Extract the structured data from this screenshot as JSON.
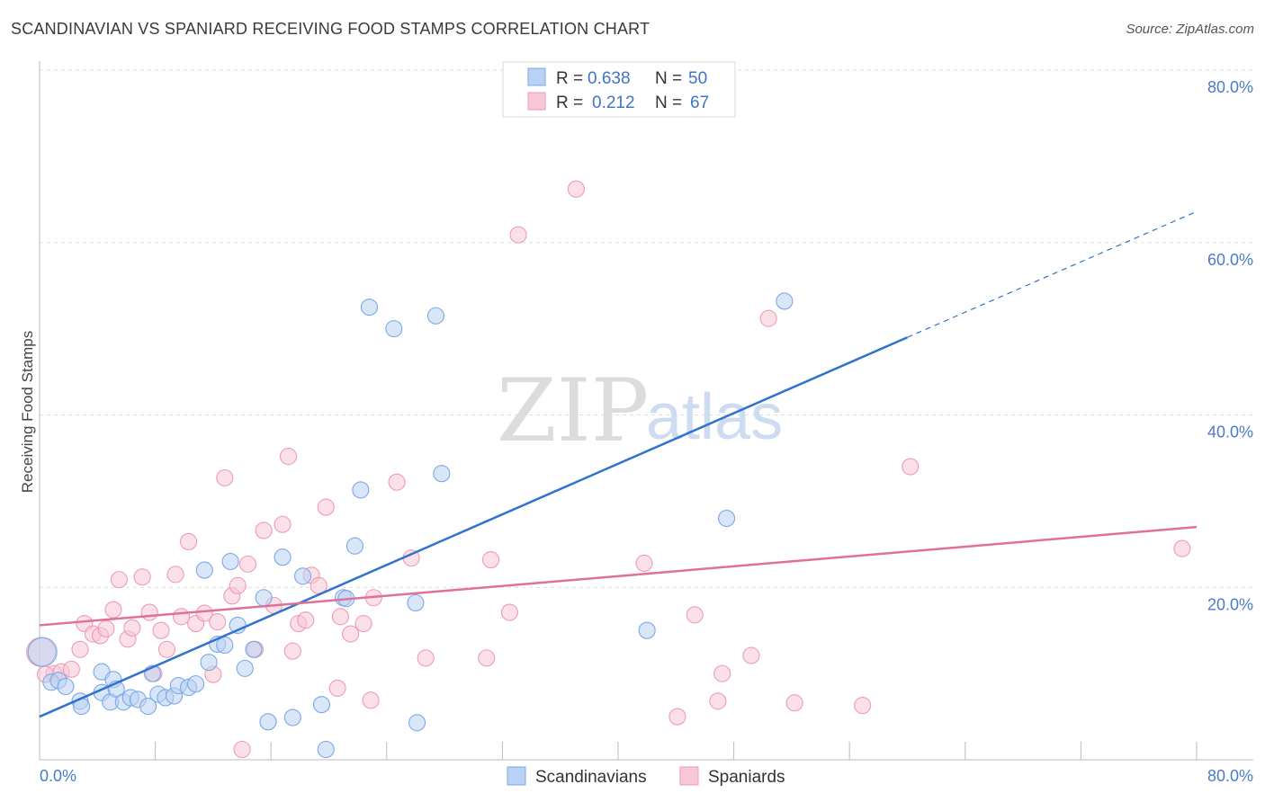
{
  "title": "SCANDINAVIAN VS SPANIARD RECEIVING FOOD STAMPS CORRELATION CHART",
  "source": "Source: ZipAtlas.com",
  "watermark": {
    "zip": "ZIP",
    "atlas": "atlas"
  },
  "colors": {
    "scandinavians": "#7aa8e6",
    "scandinavians_fill": "#b9d2f3",
    "scandinavians_line": "#2f72d0",
    "spaniards": "#ef9ab4",
    "spaniards_fill": "#f8c7d6",
    "spaniards_line": "#e0709a",
    "grid": "#dddddd",
    "tick_text": "#4a7cc9"
  },
  "legend": {
    "rows": [
      {
        "r_label": "R =",
        "r_value": "0.638",
        "n_label": "N =",
        "n_value": "50"
      },
      {
        "r_label": "R =",
        "r_value": "0.212",
        "n_label": "N =",
        "n_value": "67"
      }
    ]
  },
  "chart_data": {
    "type": "scatter",
    "title": "SCANDINAVIAN VS SPANIARD RECEIVING FOOD STAMPS CORRELATION CHART",
    "xlabel": "",
    "ylabel": "Receiving Food Stamps",
    "xlim": [
      0,
      80
    ],
    "ylim": [
      0,
      80
    ],
    "x_tick_labels": [
      "0.0%",
      "80.0%"
    ],
    "y_tick_labels": [
      "20.0%",
      "40.0%",
      "60.0%",
      "80.0%"
    ],
    "y_ticks": [
      20,
      40,
      60,
      80
    ],
    "grid": true,
    "legend_position": "bottom",
    "series": [
      {
        "name": "Scandinavians",
        "points": [
          [
            0.2,
            12.5
          ],
          [
            0.8,
            9.0
          ],
          [
            1.3,
            9.2
          ],
          [
            1.8,
            8.5
          ],
          [
            2.8,
            6.8
          ],
          [
            2.9,
            6.2
          ],
          [
            4.3,
            7.8
          ],
          [
            4.9,
            6.7
          ],
          [
            4.3,
            10.2
          ],
          [
            5.1,
            9.3
          ],
          [
            5.3,
            8.2
          ],
          [
            5.8,
            6.7
          ],
          [
            6.3,
            7.2
          ],
          [
            6.8,
            7.0
          ],
          [
            7.5,
            6.2
          ],
          [
            7.8,
            10.0
          ],
          [
            8.2,
            7.6
          ],
          [
            8.7,
            7.2
          ],
          [
            9.3,
            7.4
          ],
          [
            9.6,
            8.6
          ],
          [
            10.3,
            8.4
          ],
          [
            10.8,
            8.8
          ],
          [
            11.4,
            22.0
          ],
          [
            11.7,
            11.3
          ],
          [
            12.3,
            13.4
          ],
          [
            12.8,
            13.3
          ],
          [
            13.2,
            23.0
          ],
          [
            13.7,
            15.6
          ],
          [
            14.2,
            10.6
          ],
          [
            14.8,
            12.8
          ],
          [
            15.5,
            18.8
          ],
          [
            15.8,
            4.4
          ],
          [
            16.8,
            23.5
          ],
          [
            17.5,
            4.9
          ],
          [
            18.2,
            21.3
          ],
          [
            19.5,
            6.4
          ],
          [
            19.8,
            1.2
          ],
          [
            21.0,
            18.8
          ],
          [
            21.2,
            18.7
          ],
          [
            21.8,
            24.8
          ],
          [
            22.2,
            31.3
          ],
          [
            22.8,
            52.5
          ],
          [
            24.5,
            50.0
          ],
          [
            26.0,
            18.2
          ],
          [
            26.1,
            4.3
          ],
          [
            27.4,
            51.5
          ],
          [
            27.8,
            33.2
          ],
          [
            42.0,
            15.0
          ],
          [
            47.5,
            28.0
          ],
          [
            51.5,
            53.2
          ]
        ]
      },
      {
        "name": "Spaniards",
        "points": [
          [
            0.1,
            12.5
          ],
          [
            1.0,
            10.0
          ],
          [
            1.5,
            10.2
          ],
          [
            2.2,
            10.5
          ],
          [
            2.8,
            12.8
          ],
          [
            3.1,
            15.8
          ],
          [
            3.7,
            14.6
          ],
          [
            4.2,
            14.4
          ],
          [
            4.6,
            15.2
          ],
          [
            5.1,
            17.4
          ],
          [
            5.5,
            20.9
          ],
          [
            6.1,
            14.0
          ],
          [
            6.4,
            15.3
          ],
          [
            7.1,
            21.2
          ],
          [
            7.6,
            17.1
          ],
          [
            7.9,
            10.0
          ],
          [
            8.4,
            15.0
          ],
          [
            8.8,
            12.8
          ],
          [
            9.4,
            21.5
          ],
          [
            9.8,
            16.6
          ],
          [
            10.3,
            25.3
          ],
          [
            10.8,
            15.8
          ],
          [
            11.4,
            17.0
          ],
          [
            12.0,
            9.9
          ],
          [
            12.3,
            16.0
          ],
          [
            12.8,
            32.7
          ],
          [
            13.3,
            19.0
          ],
          [
            13.7,
            20.2
          ],
          [
            14.0,
            1.2
          ],
          [
            14.4,
            22.7
          ],
          [
            14.9,
            12.8
          ],
          [
            15.5,
            26.6
          ],
          [
            16.2,
            17.9
          ],
          [
            16.8,
            27.3
          ],
          [
            17.2,
            35.2
          ],
          [
            17.5,
            12.6
          ],
          [
            17.9,
            15.8
          ],
          [
            18.4,
            16.2
          ],
          [
            18.8,
            21.4
          ],
          [
            19.3,
            20.2
          ],
          [
            19.8,
            29.3
          ],
          [
            20.6,
            8.3
          ],
          [
            20.8,
            16.6
          ],
          [
            21.5,
            14.6
          ],
          [
            22.4,
            15.8
          ],
          [
            22.9,
            6.9
          ],
          [
            23.1,
            18.8
          ],
          [
            24.7,
            32.2
          ],
          [
            25.7,
            23.4
          ],
          [
            26.7,
            11.8
          ],
          [
            30.9,
            11.8
          ],
          [
            31.2,
            23.2
          ],
          [
            32.5,
            17.1
          ],
          [
            33.1,
            60.9
          ],
          [
            37.1,
            66.2
          ],
          [
            41.8,
            22.8
          ],
          [
            44.1,
            5.0
          ],
          [
            45.3,
            16.8
          ],
          [
            46.9,
            6.8
          ],
          [
            47.2,
            10.0
          ],
          [
            49.2,
            12.1
          ],
          [
            50.4,
            51.2
          ],
          [
            52.2,
            6.6
          ],
          [
            56.9,
            6.3
          ],
          [
            60.2,
            34.0
          ],
          [
            79.0,
            24.5
          ],
          [
            0.4,
            9.9
          ]
        ]
      }
    ],
    "trendlines": [
      {
        "series": "Scandinavians",
        "x0": 0,
        "y0": 5.0,
        "x1": 60,
        "y1": 49.0,
        "dashed_to_x": 80,
        "dashed_to_y": 63.6
      },
      {
        "series": "Spaniards",
        "x0": 0,
        "y0": 15.6,
        "x1": 80,
        "y1": 27.0
      }
    ]
  },
  "bottom_legend": [
    {
      "label": "Scandinavians"
    },
    {
      "label": "Spaniards"
    }
  ]
}
